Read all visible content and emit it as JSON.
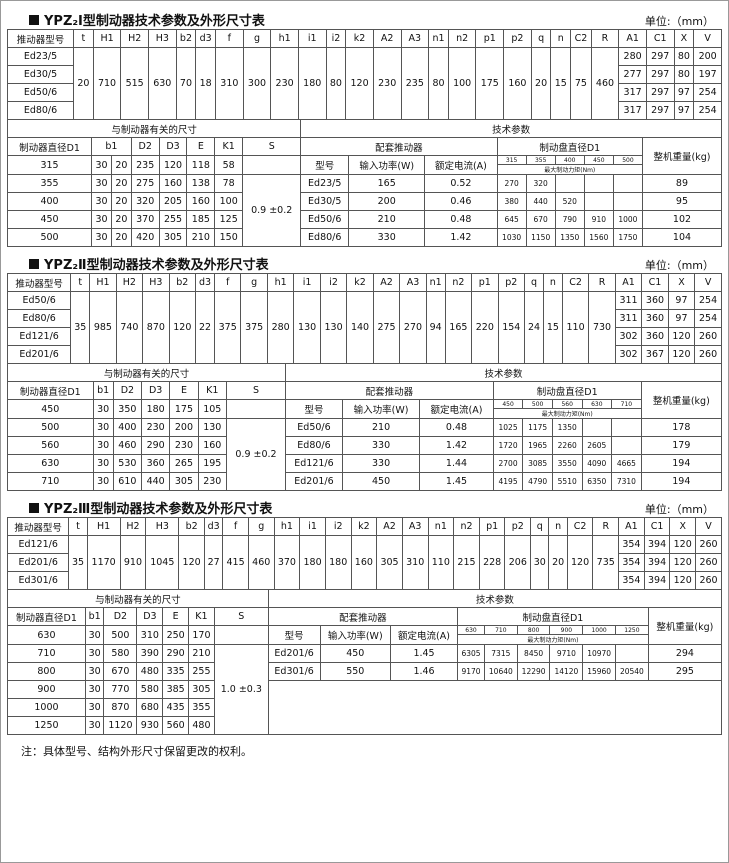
{
  "sections": [
    {
      "title": "YPZ₂I型制动器技术参数及外形尺寸表",
      "unit": "单位:（mm）",
      "spec": {
        "header": [
          "推动器型号",
          "t",
          "H1",
          "H2",
          "H3",
          "b2",
          "d3",
          "f",
          "g",
          "h1",
          "i1",
          "i2",
          "k2",
          "A2",
          "A3",
          "n1",
          "n2",
          "p1",
          "p2",
          "q",
          "n",
          "C2",
          "R",
          "A1",
          "C1",
          "X",
          "V"
        ],
        "shared": [
          20,
          710,
          515,
          630,
          70,
          18,
          310,
          300,
          230,
          180,
          80,
          120,
          230,
          235,
          80,
          100,
          175,
          160,
          20,
          15,
          75,
          460
        ],
        "rows": [
          [
            "Ed23/5",
            280,
            297,
            80,
            200
          ],
          [
            "Ed30/5",
            277,
            297,
            80,
            197
          ],
          [
            "Ed50/6",
            317,
            297,
            97,
            254
          ],
          [
            "Ed80/6",
            317,
            297,
            97,
            254
          ]
        ]
      },
      "dims": {
        "group": "与制动器有关的尺寸",
        "header": [
          "制动器直径D1",
          "b1",
          "D2",
          "D3",
          "E",
          "K1",
          "S"
        ],
        "rows": [
          [
            315,
            30,
            20,
            235,
            120,
            118,
            58
          ],
          [
            355,
            30,
            20,
            275,
            160,
            138,
            78
          ],
          [
            400,
            30,
            20,
            320,
            205,
            160,
            100
          ],
          [
            450,
            30,
            20,
            370,
            255,
            185,
            125
          ],
          [
            500,
            30,
            20,
            420,
            305,
            210,
            150
          ]
        ],
        "s": "0.9 ±0.2"
      },
      "tech": {
        "group": "技术参数",
        "header": [
          "配套推动器",
          "制动盘直径D1",
          "整机重量(kg)"
        ],
        "labels": [
          "型号",
          "输入功率(W)",
          "额定电流(A)"
        ],
        "torque_label": "最大制动力矩(Nm)",
        "disks": [
          315,
          355,
          400,
          450,
          500
        ],
        "rows": [
          {
            "model": "Ed23/5",
            "power": 165,
            "current": 0.52,
            "torque": [
              270,
              320
            ],
            "weight": 89
          },
          {
            "model": "Ed30/5",
            "power": 200,
            "current": 0.46,
            "torque": [
              380,
              440,
              520
            ],
            "weight": 95
          },
          {
            "model": "Ed50/6",
            "power": 210,
            "current": 0.48,
            "torque": [
              645,
              670,
              790,
              910,
              1000
            ],
            "weight": 102
          },
          {
            "model": "Ed80/6",
            "power": 330,
            "current": 1.42,
            "torque": [
              1030,
              1150,
              1350,
              1560,
              1750
            ],
            "weight": 104
          }
        ]
      }
    },
    {
      "title": "YPZ₂Ⅱ型制动器技术参数及外形尺寸表",
      "unit": "单位:（mm）",
      "spec": {
        "header": [
          "推动器型号",
          "t",
          "H1",
          "H2",
          "H3",
          "b2",
          "d3",
          "f",
          "g",
          "h1",
          "i1",
          "i2",
          "k2",
          "A2",
          "A3",
          "n1",
          "n2",
          "p1",
          "p2",
          "q",
          "n",
          "C2",
          "R",
          "A1",
          "C1",
          "X",
          "V"
        ],
        "shared": [
          35,
          985,
          740,
          870,
          120,
          22,
          375,
          375,
          280,
          130,
          130,
          140,
          275,
          270,
          94,
          165,
          220,
          154,
          24,
          15,
          110,
          730
        ],
        "rows": [
          [
            "Ed50/6",
            311,
            360,
            97,
            254
          ],
          [
            "Ed80/6",
            311,
            360,
            97,
            254
          ],
          [
            "Ed121/6",
            302,
            360,
            120,
            260
          ],
          [
            "Ed201/6",
            302,
            367,
            120,
            260
          ]
        ]
      },
      "dims": {
        "group": "与制动器有关的尺寸",
        "header": [
          "制动器直径D1",
          "b1",
          "D2",
          "D3",
          "E",
          "K1",
          "S"
        ],
        "rows": [
          [
            450,
            30,
            350,
            180,
            175,
            105
          ],
          [
            500,
            30,
            400,
            230,
            200,
            130
          ],
          [
            560,
            30,
            460,
            290,
            230,
            160
          ],
          [
            630,
            30,
            530,
            360,
            265,
            195
          ],
          [
            710,
            30,
            610,
            440,
            305,
            230
          ]
        ],
        "s": "0.9 ±0.2"
      },
      "tech": {
        "group": "技术参数",
        "header": [
          "配套推动器",
          "制动盘直径D1",
          "整机重量(kg)"
        ],
        "labels": [
          "型号",
          "输入功率(W)",
          "额定电流(A)"
        ],
        "torque_label": "最大制动力矩(Nm)",
        "disks": [
          450,
          500,
          560,
          630,
          710
        ],
        "rows": [
          {
            "model": "Ed50/6",
            "power": 210,
            "current": 0.48,
            "torque": [
              1025,
              1175,
              1350
            ],
            "weight": 178
          },
          {
            "model": "Ed80/6",
            "power": 330,
            "current": 1.42,
            "torque": [
              1720,
              1965,
              2260,
              2605
            ],
            "weight": 179
          },
          {
            "model": "Ed121/6",
            "power": 330,
            "current": 1.44,
            "torque": [
              2700,
              3085,
              3550,
              4090,
              4665
            ],
            "weight": 194
          },
          {
            "model": "Ed201/6",
            "power": 450,
            "current": 1.45,
            "torque": [
              4195,
              4790,
              5510,
              6350,
              7310
            ],
            "weight": 194
          }
        ]
      }
    },
    {
      "title": "YPZ₂Ⅲ型制动器技术参数及外形尺寸表",
      "unit": "单位:（mm）",
      "spec": {
        "header": [
          "推动器型号",
          "t",
          "H1",
          "H2",
          "H3",
          "b2",
          "d3",
          "f",
          "g",
          "h1",
          "i1",
          "i2",
          "k2",
          "A2",
          "A3",
          "n1",
          "n2",
          "p1",
          "p2",
          "q",
          "n",
          "C2",
          "R",
          "A1",
          "C1",
          "X",
          "V"
        ],
        "shared": [
          35,
          1170,
          910,
          1045,
          120,
          27,
          415,
          460,
          370,
          180,
          180,
          160,
          305,
          310,
          110,
          215,
          228,
          206,
          30,
          20,
          120,
          735
        ],
        "rows": [
          [
            "Ed121/6",
            354,
            394,
            120,
            260
          ],
          [
            "Ed201/6",
            354,
            394,
            120,
            260
          ],
          [
            "Ed301/6",
            354,
            394,
            120,
            260
          ]
        ]
      },
      "dims": {
        "group": "与制动器有关的尺寸",
        "header": [
          "制动器直径D1",
          "b1",
          "D2",
          "D3",
          "E",
          "K1",
          "S"
        ],
        "rows": [
          [
            630,
            30,
            500,
            310,
            250,
            170
          ],
          [
            710,
            30,
            580,
            390,
            290,
            210
          ],
          [
            800,
            30,
            670,
            480,
            335,
            255
          ],
          [
            900,
            30,
            770,
            580,
            385,
            305
          ],
          [
            1000,
            30,
            870,
            680,
            435,
            355
          ],
          [
            1250,
            30,
            1120,
            930,
            560,
            480
          ]
        ],
        "s": "1.0 ±0.3"
      },
      "tech": {
        "group": "技术参数",
        "header": [
          "配套推动器",
          "制动盘直径D1",
          "整机重量(kg)"
        ],
        "labels": [
          "型号",
          "输入功率(W)",
          "额定电流(A)"
        ],
        "torque_label": "最大制动力矩(Nm)",
        "disks": [
          630,
          710,
          800,
          900,
          1000,
          1250
        ],
        "rows": [
          {
            "model": "Ed201/6",
            "power": 450,
            "current": 1.45,
            "torque": [
              6305,
              7315,
              8450,
              9710,
              10970
            ],
            "weight": 294
          },
          {
            "model": "Ed301/6",
            "power": 550,
            "current": 1.46,
            "torque": [
              9170,
              10640,
              12290,
              14120,
              15960,
              20540
            ],
            "weight": 295
          }
        ]
      }
    }
  ],
  "note": "注：具体型号、结构外形尺寸保留更改的权利。"
}
